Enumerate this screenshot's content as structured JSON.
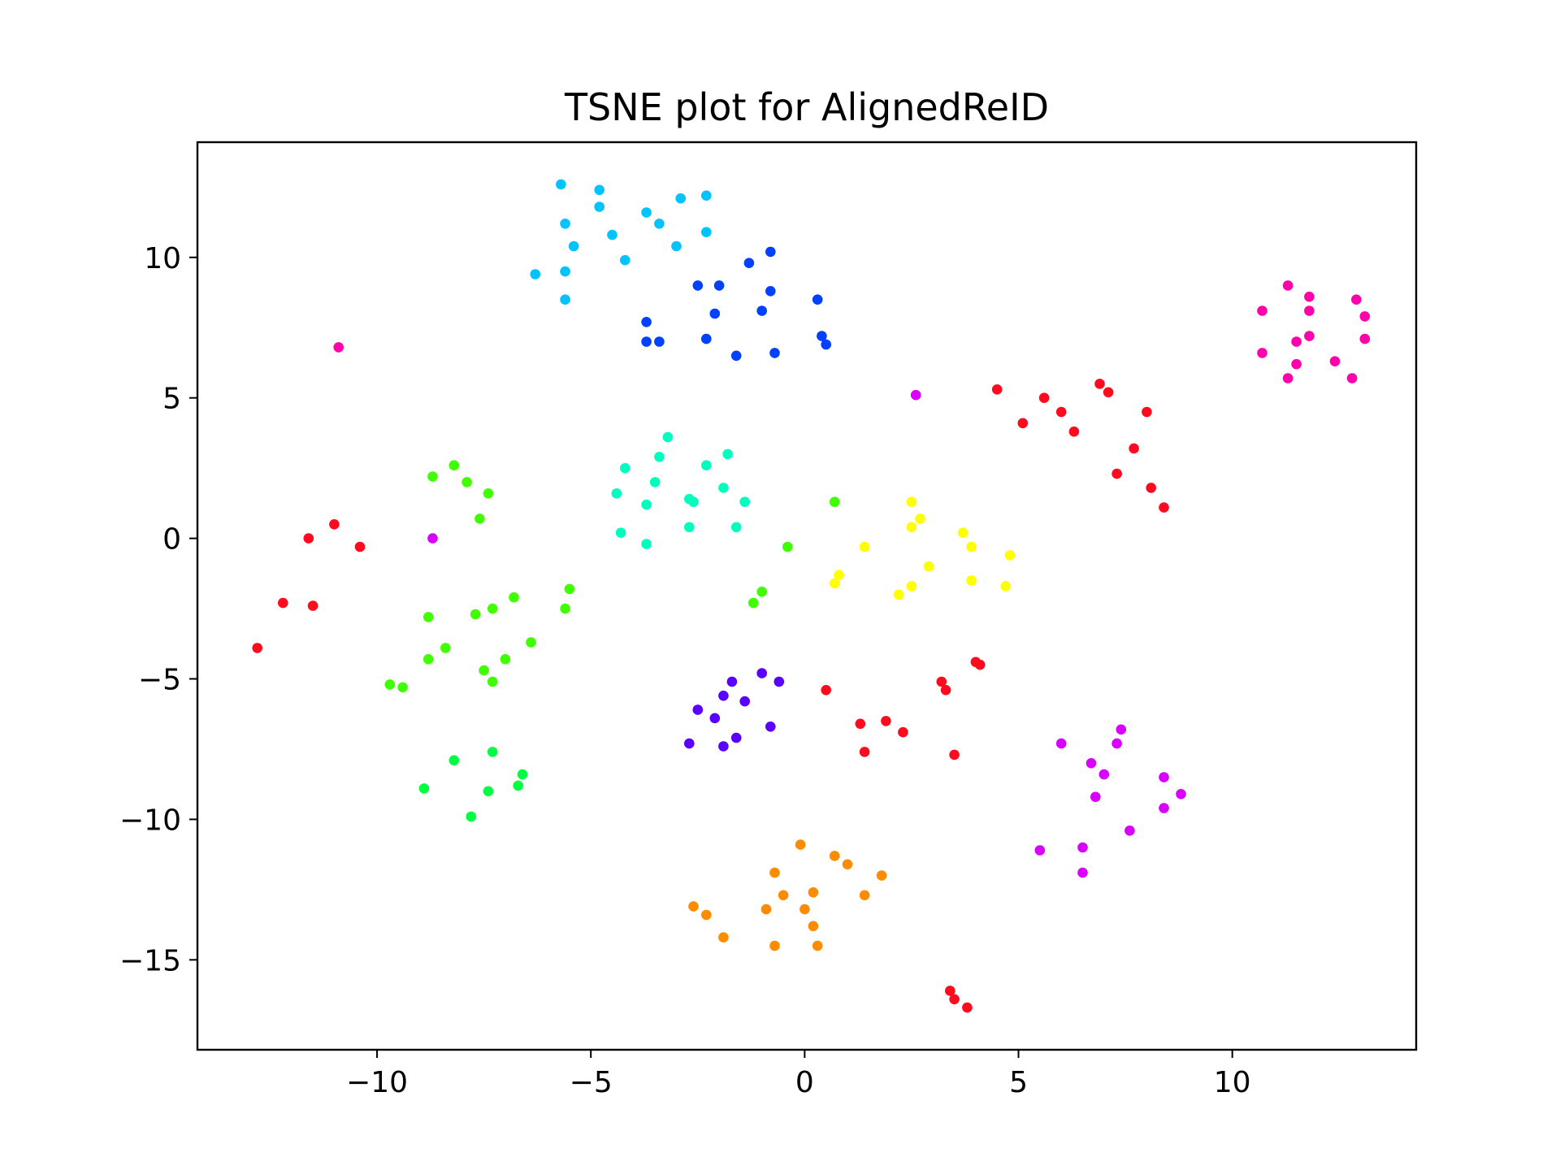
{
  "chart_data": {
    "type": "scatter",
    "title": "TSNE plot for AlignedReID",
    "xlabel": "",
    "ylabel": "",
    "xlim": [
      -14.2,
      14.3
    ],
    "ylim": [
      -18.2,
      14.1
    ],
    "xticks": [
      {
        "value": -10,
        "label": "−10"
      },
      {
        "value": -5,
        "label": "−5"
      },
      {
        "value": 0,
        "label": "0"
      },
      {
        "value": 5,
        "label": "5"
      },
      {
        "value": 10,
        "label": "10"
      }
    ],
    "yticks": [
      {
        "value": 10,
        "label": "10"
      },
      {
        "value": 5,
        "label": "5"
      },
      {
        "value": 0,
        "label": "0"
      },
      {
        "value": -5,
        "label": "−5"
      },
      {
        "value": -10,
        "label": "−10"
      },
      {
        "value": -15,
        "label": "−15"
      }
    ],
    "grid": false,
    "series": [
      {
        "color": "#00c3ff",
        "points": [
          [
            -5.7,
            12.6
          ],
          [
            -4.8,
            12.4
          ],
          [
            -2.9,
            12.1
          ],
          [
            -2.3,
            12.2
          ],
          [
            -5.6,
            11.2
          ],
          [
            -4.8,
            11.8
          ],
          [
            -3.7,
            11.6
          ],
          [
            -3.4,
            11.2
          ],
          [
            -4.5,
            10.8
          ],
          [
            -5.4,
            10.4
          ],
          [
            -3.0,
            10.4
          ],
          [
            -2.3,
            10.9
          ],
          [
            -4.2,
            9.9
          ],
          [
            -6.3,
            9.4
          ],
          [
            -5.6,
            9.5
          ],
          [
            -5.6,
            8.5
          ]
        ]
      },
      {
        "color": "#0040ff",
        "points": [
          [
            -0.8,
            10.2
          ],
          [
            -1.3,
            9.8
          ],
          [
            -2.5,
            9.0
          ],
          [
            -2.0,
            9.0
          ],
          [
            -0.8,
            8.8
          ],
          [
            0.3,
            8.5
          ],
          [
            -2.1,
            8.0
          ],
          [
            -1.0,
            8.1
          ],
          [
            -3.7,
            7.7
          ],
          [
            0.4,
            7.2
          ],
          [
            -3.7,
            7.0
          ],
          [
            -3.4,
            7.0
          ],
          [
            -2.3,
            7.1
          ],
          [
            0.5,
            6.9
          ],
          [
            -1.6,
            6.5
          ],
          [
            -0.7,
            6.6
          ]
        ]
      },
      {
        "color": "#00ffbf",
        "points": [
          [
            -3.2,
            3.6
          ],
          [
            -3.4,
            2.9
          ],
          [
            -1.8,
            3.0
          ],
          [
            -4.2,
            2.5
          ],
          [
            -2.3,
            2.6
          ],
          [
            -3.5,
            2.0
          ],
          [
            -1.9,
            1.8
          ],
          [
            -4.4,
            1.6
          ],
          [
            -2.7,
            1.4
          ],
          [
            -2.6,
            1.3
          ],
          [
            -1.4,
            1.3
          ],
          [
            -3.7,
            1.2
          ],
          [
            -2.7,
            0.4
          ],
          [
            -1.6,
            0.4
          ],
          [
            -4.3,
            0.2
          ],
          [
            -3.7,
            -0.2
          ]
        ]
      },
      {
        "color": "#00ff40",
        "points": [
          [
            -8.2,
            -7.9
          ],
          [
            -7.3,
            -7.6
          ],
          [
            -6.6,
            -8.4
          ],
          [
            -8.9,
            -8.9
          ],
          [
            -7.4,
            -9.0
          ],
          [
            -6.7,
            -8.8
          ],
          [
            -7.8,
            -9.9
          ]
        ]
      },
      {
        "color": "#40ff00",
        "points": [
          [
            -8.2,
            2.6
          ],
          [
            -8.7,
            2.2
          ],
          [
            -7.9,
            2.0
          ],
          [
            -7.4,
            1.6
          ],
          [
            -7.6,
            0.7
          ],
          [
            -0.4,
            -0.3
          ],
          [
            0.7,
            1.3
          ],
          [
            -5.5,
            -1.8
          ],
          [
            -6.8,
            -2.1
          ],
          [
            -7.3,
            -2.5
          ],
          [
            -7.7,
            -2.7
          ],
          [
            -5.6,
            -2.5
          ],
          [
            -8.8,
            -2.8
          ],
          [
            -1.0,
            -1.9
          ],
          [
            -1.2,
            -2.3
          ],
          [
            -8.4,
            -3.9
          ],
          [
            -6.4,
            -3.7
          ],
          [
            -8.8,
            -4.3
          ],
          [
            -7.0,
            -4.3
          ],
          [
            -7.5,
            -4.7
          ],
          [
            -7.3,
            -5.1
          ],
          [
            -9.7,
            -5.2
          ],
          [
            -9.4,
            -5.3
          ]
        ]
      },
      {
        "color": "#ffff00",
        "points": [
          [
            2.5,
            1.3
          ],
          [
            2.7,
            0.7
          ],
          [
            2.5,
            0.4
          ],
          [
            3.7,
            0.2
          ],
          [
            1.4,
            -0.3
          ],
          [
            3.9,
            -0.3
          ],
          [
            4.8,
            -0.6
          ],
          [
            2.9,
            -1.0
          ],
          [
            0.8,
            -1.3
          ],
          [
            0.7,
            -1.6
          ],
          [
            3.9,
            -1.5
          ],
          [
            2.5,
            -1.7
          ],
          [
            4.7,
            -1.7
          ],
          [
            2.2,
            -2.0
          ]
        ]
      },
      {
        "color": "#5a00ff",
        "points": [
          [
            -1.0,
            -4.8
          ],
          [
            -1.7,
            -5.1
          ],
          [
            -0.6,
            -5.1
          ],
          [
            -1.9,
            -5.6
          ],
          [
            -1.4,
            -5.8
          ],
          [
            -2.5,
            -6.1
          ],
          [
            -2.1,
            -6.4
          ],
          [
            -0.8,
            -6.7
          ],
          [
            -1.6,
            -7.1
          ],
          [
            -2.7,
            -7.3
          ],
          [
            -1.9,
            -7.4
          ]
        ]
      },
      {
        "color": "#ff8c00",
        "points": [
          [
            -0.1,
            -10.9
          ],
          [
            0.7,
            -11.3
          ],
          [
            1.0,
            -11.6
          ],
          [
            -0.7,
            -11.9
          ],
          [
            1.8,
            -12.0
          ],
          [
            0.2,
            -12.6
          ],
          [
            -0.5,
            -12.7
          ],
          [
            1.4,
            -12.7
          ],
          [
            -2.6,
            -13.1
          ],
          [
            -0.9,
            -13.2
          ],
          [
            0.0,
            -13.2
          ],
          [
            -2.3,
            -13.4
          ],
          [
            0.2,
            -13.8
          ],
          [
            -1.9,
            -14.2
          ],
          [
            -0.7,
            -14.5
          ],
          [
            0.3,
            -14.5
          ]
        ]
      },
      {
        "color": "#ff0a1e",
        "points": [
          [
            4.5,
            5.3
          ],
          [
            6.9,
            5.5
          ],
          [
            7.1,
            5.2
          ],
          [
            5.6,
            5.0
          ],
          [
            6.0,
            4.5
          ],
          [
            8.0,
            4.5
          ],
          [
            5.1,
            4.1
          ],
          [
            6.3,
            3.8
          ],
          [
            7.7,
            3.2
          ],
          [
            7.3,
            2.3
          ],
          [
            8.1,
            1.8
          ],
          [
            8.4,
            1.1
          ],
          [
            -11.0,
            0.5
          ],
          [
            -11.6,
            0.0
          ],
          [
            -10.4,
            -0.3
          ],
          [
            -12.2,
            -2.3
          ],
          [
            -11.5,
            -2.4
          ],
          [
            -12.8,
            -3.9
          ],
          [
            4.0,
            -4.4
          ],
          [
            4.1,
            -4.5
          ],
          [
            3.2,
            -5.1
          ],
          [
            3.3,
            -5.4
          ],
          [
            0.5,
            -5.4
          ],
          [
            1.3,
            -6.6
          ],
          [
            1.9,
            -6.5
          ],
          [
            2.3,
            -6.9
          ],
          [
            1.4,
            -7.6
          ],
          [
            3.5,
            -7.7
          ],
          [
            3.4,
            -16.1
          ],
          [
            3.5,
            -16.4
          ],
          [
            3.8,
            -16.7
          ]
        ]
      },
      {
        "color": "#ff00aa",
        "points": [
          [
            11.3,
            9.0
          ],
          [
            11.8,
            8.6
          ],
          [
            12.9,
            8.5
          ],
          [
            10.7,
            8.1
          ],
          [
            11.8,
            8.1
          ],
          [
            13.1,
            7.9
          ],
          [
            11.5,
            7.0
          ],
          [
            11.8,
            7.2
          ],
          [
            13.1,
            7.1
          ],
          [
            10.7,
            6.6
          ],
          [
            11.5,
            6.2
          ],
          [
            12.4,
            6.3
          ],
          [
            11.3,
            5.7
          ],
          [
            12.8,
            5.7
          ],
          [
            -10.9,
            6.8
          ]
        ]
      },
      {
        "color": "#d800ff",
        "points": [
          [
            2.6,
            5.1
          ],
          [
            -8.7,
            0.0
          ],
          [
            7.4,
            -6.8
          ],
          [
            6.0,
            -7.3
          ],
          [
            7.3,
            -7.3
          ],
          [
            6.7,
            -8.0
          ],
          [
            7.0,
            -8.4
          ],
          [
            8.4,
            -8.5
          ],
          [
            8.8,
            -9.1
          ],
          [
            6.8,
            -9.2
          ],
          [
            8.4,
            -9.6
          ],
          [
            7.6,
            -10.4
          ],
          [
            5.5,
            -11.1
          ],
          [
            6.5,
            -11.0
          ],
          [
            6.5,
            -11.9
          ]
        ]
      }
    ]
  }
}
